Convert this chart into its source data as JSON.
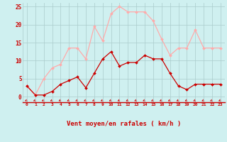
{
  "x": [
    0,
    1,
    2,
    3,
    4,
    5,
    6,
    7,
    8,
    9,
    10,
    11,
    12,
    13,
    14,
    15,
    16,
    17,
    18,
    19,
    20,
    21,
    22,
    23
  ],
  "rafales": [
    3,
    0.5,
    5,
    8,
    9,
    13.5,
    13.5,
    10.5,
    19.5,
    15.5,
    23,
    25,
    23.5,
    23.5,
    23.5,
    21,
    16,
    11.5,
    13.5,
    13.5,
    18.5,
    13.5,
    13.5,
    13.5
  ],
  "moyen": [
    3,
    0.5,
    0.5,
    1.5,
    3.5,
    4.5,
    5.5,
    2.5,
    6.5,
    10.5,
    12.5,
    8.5,
    9.5,
    9.5,
    11.5,
    10.5,
    10.5,
    6.5,
    3,
    2,
    3.5,
    3.5,
    3.5,
    3.5
  ],
  "color_rafales": "#ffaaaa",
  "color_moyen": "#cc0000",
  "bg_color": "#cff0f0",
  "grid_color": "#aacccc",
  "xlabel": "Vent moyen/en rafales ( km/h )",
  "ylim": [
    -1.5,
    26
  ],
  "yticks": [
    0,
    5,
    10,
    15,
    20,
    25
  ],
  "xlabel_color": "#cc0000",
  "tick_color": "#cc0000",
  "arrow_color": "#cc0000",
  "spine_bottom_color": "#cc0000"
}
